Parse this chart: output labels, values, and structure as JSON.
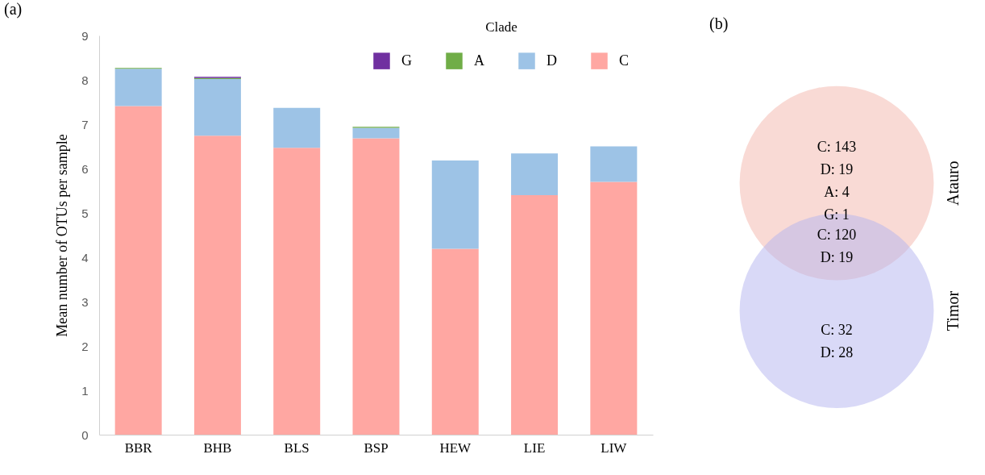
{
  "chart_data": [
    {
      "type": "bar",
      "title": "(a)",
      "ylabel": "Mean number of OTUs per sample",
      "legend_title": "Clade",
      "categories": [
        "BBR",
        "BHB",
        "BLS",
        "BSP",
        "HEW",
        "LIE",
        "LIW"
      ],
      "stacked": true,
      "ylim": [
        0,
        9
      ],
      "yticks": [
        0,
        1,
        2,
        3,
        4,
        5,
        6,
        7,
        8,
        9
      ],
      "grid": false,
      "legend": "top right",
      "series": [
        {
          "name": "C",
          "color": "#ffa7a2",
          "values": [
            7.41,
            6.74,
            6.47,
            6.68,
            4.19,
            5.4,
            5.7
          ]
        },
        {
          "name": "D",
          "color": "#9dc3e6",
          "values": [
            0.84,
            1.28,
            0.9,
            0.24,
            1.99,
            0.94,
            0.8
          ]
        },
        {
          "name": "A",
          "color": "#70ad47",
          "values": [
            0.02,
            0.02,
            null,
            0.02,
            null,
            null,
            null
          ]
        },
        {
          "name": "G",
          "color": "#7030a0",
          "values": [
            null,
            0.03,
            null,
            null,
            null,
            null,
            null
          ]
        }
      ]
    },
    {
      "type": "other",
      "title": "(b)",
      "categories": [
        "Atauro",
        "Timor"
      ],
      "colors": [
        "#f4b6ab",
        "#b3b3ef"
      ],
      "annotations": [
        "C: 143\nD: 19\nA: 4\nG: 1",
        "C: 120\nD: 19",
        "C: 32\nD: 28"
      ]
    }
  ]
}
